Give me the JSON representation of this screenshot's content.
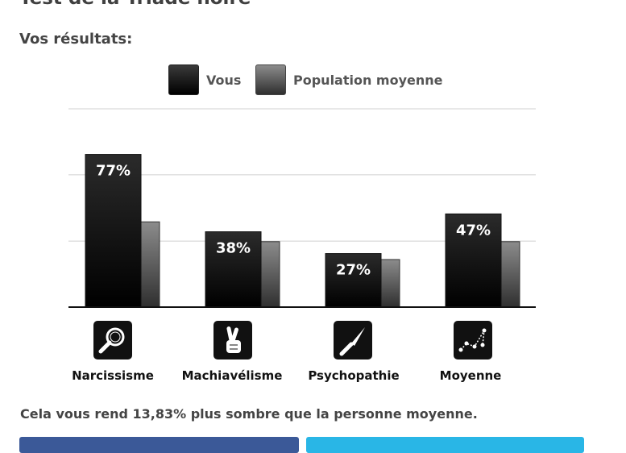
{
  "header": {
    "title": "Test de la Triade noire",
    "results_heading": "Vos résultats:"
  },
  "legend": {
    "you": "Vous",
    "population": "Population moyenne"
  },
  "chart_data": {
    "type": "bar",
    "categories": [
      "Narcissisme",
      "Machiavélisme",
      "Psychopathie",
      "Moyenne"
    ],
    "series": [
      {
        "name": "Vous",
        "values": [
          77,
          38,
          27,
          47
        ],
        "labels": [
          "77%",
          "38%",
          "27%",
          "47%"
        ]
      },
      {
        "name": "Population moyenne",
        "values": [
          43,
          33,
          24,
          33
        ]
      }
    ],
    "ylim": [
      0,
      100
    ],
    "grid": true,
    "legend_position": "top"
  },
  "categories": [
    {
      "label": "Narcissisme",
      "icon": "magnifier-icon"
    },
    {
      "label": "Machiavélisme",
      "icon": "crossed-fingers-icon"
    },
    {
      "label": "Psychopathie",
      "icon": "knife-icon"
    },
    {
      "label": "Moyenne",
      "icon": "constellation-icon"
    }
  ],
  "summary": "Cela vous rend 13,83% plus sombre que la personne moyenne.",
  "colors": {
    "you_bar_top": "#2b2b2b",
    "you_bar_bottom": "#000000",
    "population_bar_top": "#8c8c8c",
    "population_bar_bottom": "#2f2f2f",
    "facebook_button": "#3b5998",
    "twitter_button": "#29b6e6"
  }
}
